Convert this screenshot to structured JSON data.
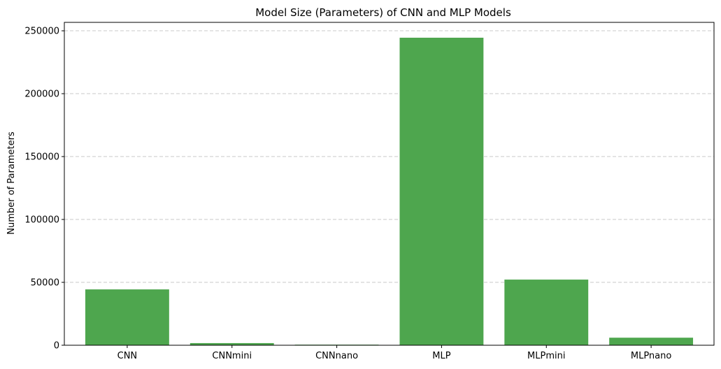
{
  "chart_data": {
    "type": "bar",
    "title": "Model Size (Parameters) of CNN and MLP Models",
    "xlabel": "",
    "ylabel": "Number of Parameters",
    "categories": [
      "CNN",
      "CNNmini",
      "CNNnano",
      "MLP",
      "MLPmini",
      "MLPnano"
    ],
    "values": [
      44400,
      1700,
      450,
      244500,
      52200,
      6000
    ],
    "ylim": [
      0,
      256700
    ],
    "yticks": [
      0,
      50000,
      100000,
      150000,
      200000,
      250000
    ],
    "ytick_labels": [
      "0",
      "50000",
      "100000",
      "150000",
      "200000",
      "250000"
    ],
    "bar_color": "#4ea64e",
    "grid": "y-dashed",
    "legend": "none"
  }
}
